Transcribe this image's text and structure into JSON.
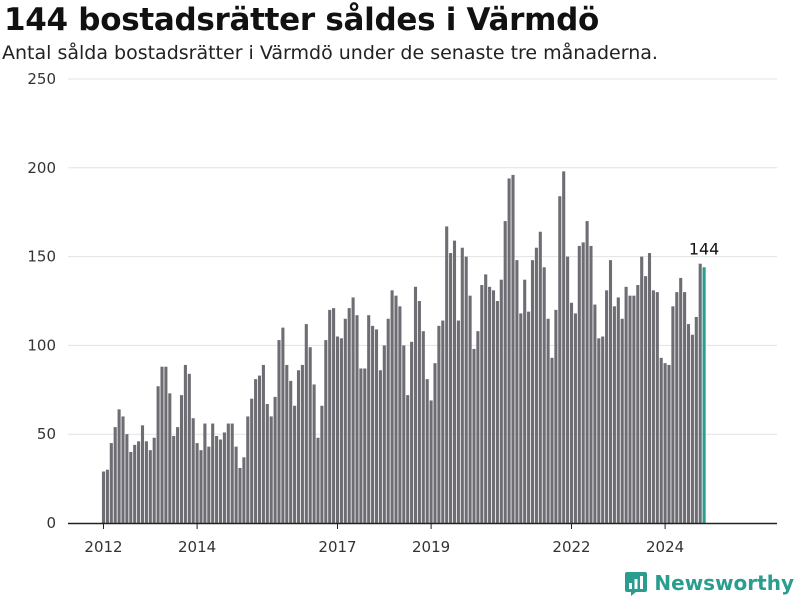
{
  "header": {
    "title": "144 bostadsrätter såldes i Värmdö",
    "subtitle": "Antal sålda bostadsrätter i Värmdö under de senaste tre månaderna."
  },
  "brand": {
    "name": "Newsworthy",
    "icon": "bar-chart-logo-icon"
  },
  "colors": {
    "bar": "#6e6d74",
    "highlight": "#2a9d8f",
    "grid": "#e3e3e3",
    "axis": "#222222"
  },
  "chart_data": {
    "type": "bar",
    "x_start": "2012-01",
    "x_ticks": [
      "2012",
      "2014",
      "2017",
      "2019",
      "2022",
      "2024"
    ],
    "y_ticks": [
      "0",
      "50",
      "100",
      "150",
      "200",
      "250"
    ],
    "ylim": [
      0,
      250
    ],
    "grid": true,
    "highlight_label": "144",
    "values": [
      29,
      30,
      45,
      54,
      64,
      60,
      50,
      40,
      44,
      46,
      55,
      46,
      41,
      48,
      77,
      88,
      88,
      73,
      49,
      54,
      72,
      89,
      84,
      59,
      45,
      41,
      56,
      43,
      56,
      49,
      47,
      51,
      56,
      56,
      43,
      31,
      37,
      60,
      70,
      81,
      83,
      89,
      67,
      60,
      71,
      103,
      110,
      89,
      80,
      66,
      86,
      89,
      112,
      99,
      78,
      48,
      66,
      103,
      120,
      121,
      105,
      104,
      115,
      121,
      127,
      117,
      87,
      87,
      117,
      111,
      109,
      86,
      100,
      115,
      131,
      128,
      122,
      100,
      72,
      102,
      133,
      125,
      108,
      81,
      69,
      90,
      111,
      114,
      167,
      152,
      159,
      114,
      155,
      150,
      128,
      98,
      108,
      134,
      140,
      133,
      131,
      125,
      137,
      170,
      194,
      196,
      148,
      118,
      137,
      119,
      148,
      155,
      164,
      144,
      115,
      93,
      120,
      184,
      198,
      150,
      124,
      118,
      156,
      158,
      170,
      156,
      123,
      104,
      105,
      131,
      148,
      122,
      127,
      115,
      133,
      128,
      128,
      134,
      150,
      139,
      152,
      131,
      130,
      93,
      90,
      89,
      122,
      130,
      138,
      130,
      112,
      106,
      116,
      146,
      144
    ]
  }
}
